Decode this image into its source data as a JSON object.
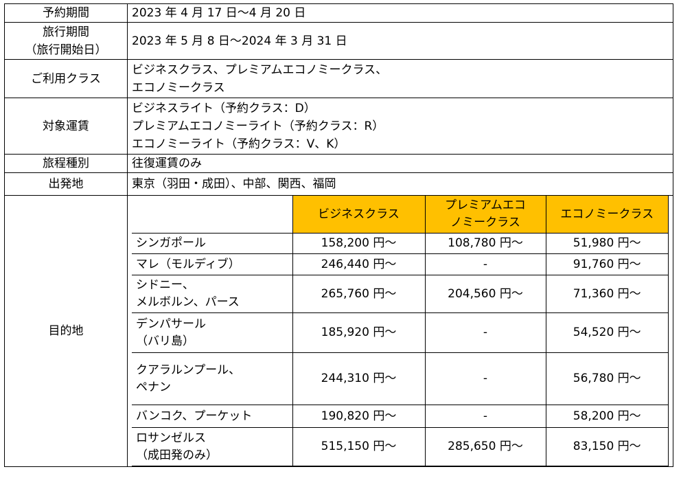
{
  "rows": {
    "booking_period": {
      "label": "予約期間",
      "value": "2023 年 4 月 17 日～4 月 20 日"
    },
    "travel_period": {
      "label_lines": [
        "旅行期間",
        "（旅行開始日）"
      ],
      "value": "2023 年 5 月 8 日～2024 年 3 月 31 日"
    },
    "classes": {
      "label": "ご利用クラス",
      "value_lines": [
        "ビジネスクラス、プレミアムエコノミークラス、",
        "エコノミークラス"
      ]
    },
    "fares": {
      "label": "対象運賃",
      "value_lines": [
        "ビジネスライト（予約クラス：D）",
        "プレミアムエコノミーライト（予約クラス：R）",
        "エコノミーライト（予約クラス：V、K）"
      ]
    },
    "itinerary": {
      "label": "旅程種別",
      "value": "往復運賃のみ"
    },
    "departure": {
      "label": "出発地",
      "value": "東京（羽田・成田）、中部、関西、福岡"
    },
    "destination": {
      "label": "目的地"
    }
  },
  "fare_table": {
    "headers": [
      "ビジネスクラス",
      [
        "プレミアムエコ",
        "ノミークラス"
      ],
      "エコノミークラス"
    ],
    "accent_color": "#ffc000",
    "rows": [
      {
        "city": [
          "シンガポール"
        ],
        "business": "158,200 円～",
        "premium": "108,780 円～",
        "economy": "51,980 円～"
      },
      {
        "city": [
          "マレ（モルディブ）"
        ],
        "business": "246,440 円～",
        "premium": "-",
        "economy": "91,760 円～"
      },
      {
        "city": [
          "シドニー、",
          "メルボルン、パース"
        ],
        "business": "265,760 円～",
        "premium": "204,560 円～",
        "economy": "71,360 円～"
      },
      {
        "city": [
          "デンパサール",
          "（バリ島）"
        ],
        "business": "185,920 円～",
        "premium": "-",
        "economy": "54,520 円～"
      },
      {
        "city": [
          "クアラルンプール、",
          "ペナン"
        ],
        "business": "244,310 円～",
        "premium": "-",
        "economy": "56,780 円～"
      },
      {
        "city": [
          "バンコク、プーケット"
        ],
        "business": "190,820 円～",
        "premium": "-",
        "economy": "58,200 円～"
      },
      {
        "city": [
          "ロサンゼルス",
          "（成田発のみ）"
        ],
        "business": "515,150 円～",
        "premium": "285,650 円～",
        "economy": "83,150 円～"
      }
    ]
  }
}
